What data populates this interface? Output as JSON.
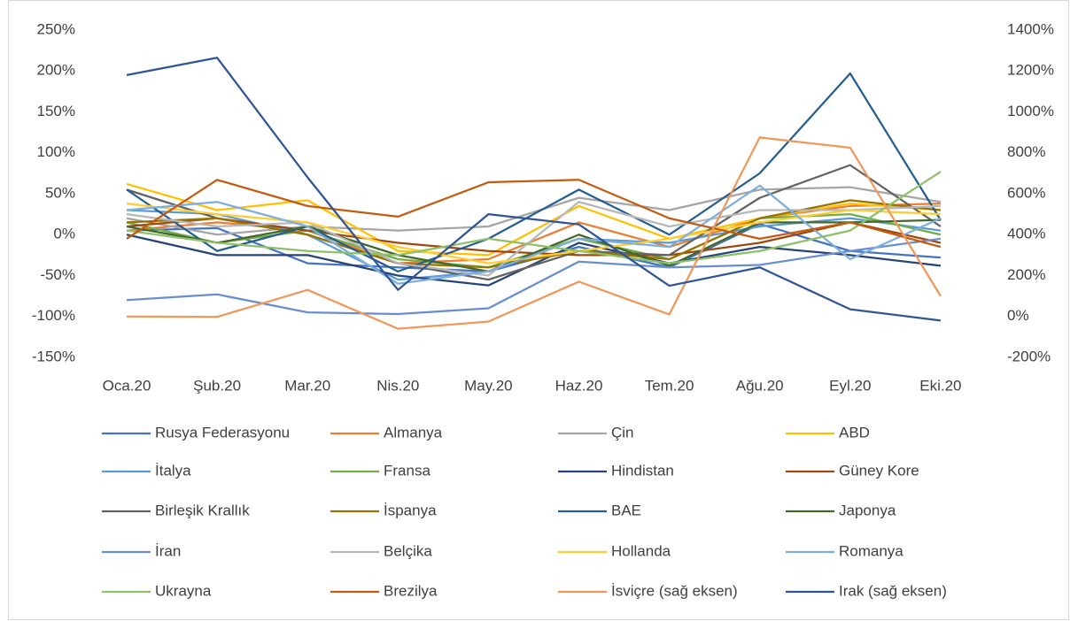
{
  "chart_data": {
    "type": "line",
    "categories": [
      "Oca.20",
      "Şub.20",
      "Mar.20",
      "Nis.20",
      "May.20",
      "Haz.20",
      "Tem.20",
      "Ağu.20",
      "Eyl.20",
      "Eki.20"
    ],
    "ylim": [
      -150,
      250
    ],
    "yticks": [
      {
        "value": -150,
        "label": "-150%"
      },
      {
        "value": -100,
        "label": "-100%"
      },
      {
        "value": -50,
        "label": "-50%"
      },
      {
        "value": 0,
        "label": "0%"
      },
      {
        "value": 50,
        "label": "50%"
      },
      {
        "value": 100,
        "label": "100%"
      },
      {
        "value": 150,
        "label": "150%"
      },
      {
        "value": 200,
        "label": "200%"
      },
      {
        "value": 250,
        "label": "250%"
      }
    ],
    "y2lim": [
      -200,
      1400
    ],
    "y2ticks": [
      {
        "value": -200,
        "label": "-200%"
      },
      {
        "value": 0,
        "label": "0%"
      },
      {
        "value": 200,
        "label": "200%"
      },
      {
        "value": 400,
        "label": "400%"
      },
      {
        "value": 600,
        "label": "600%"
      },
      {
        "value": 800,
        "label": "800%"
      },
      {
        "value": 1000,
        "label": "1000%"
      },
      {
        "value": 1200,
        "label": "1200%"
      },
      {
        "value": 1400,
        "label": "1400%"
      }
    ],
    "series": [
      {
        "name": "Rusya Federasyonu",
        "color": "#4472C4",
        "values": [
          5,
          8,
          -35,
          -40,
          -45,
          -15,
          -40,
          13,
          -20,
          -28
        ]
      },
      {
        "name": "Almanya",
        "color": "#ED7D31",
        "values": [
          5,
          15,
          5,
          -35,
          -30,
          15,
          -15,
          20,
          35,
          38
        ]
      },
      {
        "name": "Çin",
        "color": "#A5A5A5",
        "values": [
          20,
          0,
          10,
          5,
          10,
          45,
          30,
          55,
          58,
          40
        ]
      },
      {
        "name": "ABD",
        "color": "#FFC000",
        "values": [
          62,
          30,
          42,
          -20,
          -25,
          35,
          -5,
          20,
          38,
          30
        ]
      },
      {
        "name": "İtalya",
        "color": "#5B9BD5",
        "values": [
          30,
          25,
          0,
          -55,
          -45,
          -5,
          -10,
          10,
          20,
          5
        ]
      },
      {
        "name": "Fransa",
        "color": "#70AD47",
        "values": [
          15,
          -10,
          5,
          -30,
          -40,
          -5,
          -30,
          20,
          25,
          0
        ]
      },
      {
        "name": "Hindistan",
        "color": "#264478",
        "values": [
          0,
          -25,
          -25,
          -50,
          -62,
          -10,
          -35,
          -15,
          -25,
          -38
        ]
      },
      {
        "name": "Güney Kore",
        "color": "#9E480E",
        "values": [
          10,
          20,
          5,
          -10,
          -20,
          -25,
          -25,
          -10,
          15,
          -10
        ]
      },
      {
        "name": "Birleşik Krallık",
        "color": "#636363",
        "values": [
          55,
          20,
          0,
          -35,
          -55,
          -20,
          -25,
          45,
          85,
          10
        ]
      },
      {
        "name": "İspanya",
        "color": "#997300",
        "values": [
          15,
          20,
          0,
          -35,
          -40,
          -20,
          -30,
          20,
          42,
          30
        ]
      },
      {
        "name": "BAE",
        "color": "#255E91",
        "values": [
          55,
          -20,
          10,
          -45,
          -5,
          55,
          0,
          75,
          197,
          18
        ]
      },
      {
        "name": "Japonya",
        "color": "#43682B",
        "values": [
          10,
          -10,
          10,
          -25,
          -45,
          0,
          -38,
          15,
          15,
          18
        ]
      },
      {
        "name": "İran",
        "color": "#698ED0",
        "values": [
          -80,
          -73,
          -95,
          -97,
          -90,
          -33,
          -40,
          -37,
          -20,
          -5
        ]
      },
      {
        "name": "Belçika",
        "color": "#B7B7B7",
        "values": [
          25,
          10,
          15,
          -35,
          -50,
          40,
          10,
          30,
          30,
          35
        ]
      },
      {
        "name": "Hollanda",
        "color": "#FFCD33",
        "values": [
          38,
          25,
          15,
          -15,
          -35,
          -20,
          -5,
          15,
          30,
          25
        ]
      },
      {
        "name": "Romanya",
        "color": "#7CAFDD",
        "values": [
          30,
          40,
          10,
          -60,
          -45,
          -5,
          -15,
          60,
          -30,
          20
        ]
      },
      {
        "name": "Ukrayna",
        "color": "#8CC168",
        "values": [
          5,
          -10,
          -20,
          -25,
          -5,
          -20,
          -35,
          -20,
          5,
          77
        ]
      },
      {
        "name": "Brezilya",
        "color": "#C55A11",
        "values": [
          -5,
          67,
          35,
          22,
          64,
          67,
          20,
          -5,
          15,
          -15
        ]
      },
      {
        "name": "İsviçre (sağ eksen)",
        "color": "#F1975A",
        "axis": "y2",
        "values": [
          0,
          -2,
          130,
          -60,
          -25,
          170,
          10,
          875,
          825,
          100
        ]
      },
      {
        "name": "Irak (sağ eksen)",
        "color": "#2F5597",
        "axis": "y2",
        "values": [
          1180,
          1265,
          680,
          130,
          500,
          450,
          150,
          240,
          35,
          -20
        ]
      }
    ]
  }
}
